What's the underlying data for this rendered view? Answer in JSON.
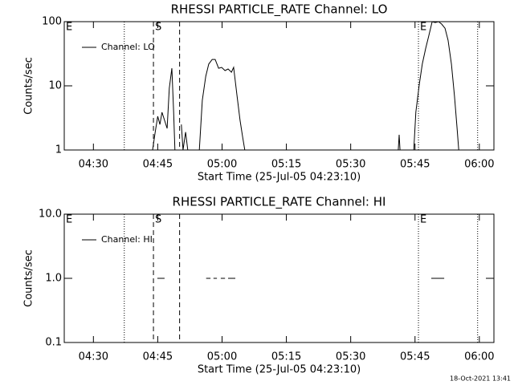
{
  "chart_data": [
    {
      "type": "line",
      "title": "RHESSI PARTICLE_RATE Channel: LO",
      "xlabel": "Start Time (25-Jul-05 04:23:10)",
      "ylabel": "Counts/sec",
      "log_y": true,
      "legend": "upper left",
      "xlim": [
        263.2,
        363.4
      ],
      "xticks": [
        {
          "value": 270,
          "label": "04:30"
        },
        {
          "value": 285,
          "label": "04:45"
        },
        {
          "value": 300,
          "label": "05:00"
        },
        {
          "value": 315,
          "label": "05:15"
        },
        {
          "value": 330,
          "label": "05:30"
        },
        {
          "value": 345,
          "label": "05:45"
        },
        {
          "value": 360,
          "label": "06:00"
        }
      ],
      "ylim": [
        1,
        100
      ],
      "yticks": [
        1,
        10,
        100
      ],
      "markers": [
        {
          "x": 263.2,
          "style": "dotted",
          "label": "E"
        },
        {
          "x": 277.2,
          "style": "dotted"
        },
        {
          "x": 284.0,
          "style": "dashed",
          "label": "S"
        },
        {
          "x": 290.1,
          "style": "dashed"
        },
        {
          "x": 345.8,
          "style": "dotted",
          "label": "E"
        },
        {
          "x": 359.6,
          "style": "dotted"
        }
      ],
      "x": [
        283.8,
        284.4,
        285.0,
        285.5,
        286.0,
        286.6,
        287.2,
        287.7,
        288.3,
        288.7,
        289.0,
        null,
        290.5,
        290.9,
        291.5,
        292.0,
        null,
        294.7,
        295.4,
        296.2,
        296.9,
        297.7,
        298.4,
        299.2,
        299.9,
        300.7,
        301.4,
        302.2,
        302.7,
        303.5,
        304.2,
        304.8,
        305.3,
        null,
        341.1,
        341.3,
        341.5,
        null,
        344.7,
        345.2,
        346.0,
        346.7,
        347.5,
        348.2,
        349.0,
        349.7,
        350.5,
        351.2,
        352.0,
        352.7,
        353.5,
        354.2,
        354.8,
        355.2
      ],
      "series": [
        {
          "name": "Channel: LO",
          "color": "#000000",
          "values": [
            1,
            1.88,
            3.35,
            2.5,
            3.87,
            2.9,
            2.17,
            9.2,
            18.8,
            3.9,
            1,
            null,
            2.5,
            1,
            1.9,
            1,
            null,
            1,
            5.96,
            14.1,
            21.8,
            25.8,
            25.8,
            18.8,
            19.4,
            17.3,
            18.3,
            16.3,
            19.4,
            6.9,
            2.9,
            1.6,
            1,
            null,
            1,
            1.73,
            1,
            null,
            1,
            3.9,
            10.6,
            21.8,
            38.7,
            59.6,
            100,
            97,
            100,
            91.6,
            79,
            51.5,
            21.8,
            6.9,
            2.2,
            1
          ]
        }
      ]
    },
    {
      "type": "line",
      "title": "RHESSI PARTICLE_RATE Channel: HI",
      "xlabel": "Start Time (25-Jul-05 04:23:10)",
      "ylabel": "Counts/sec",
      "log_y": true,
      "legend": "upper left",
      "xlim": [
        263.2,
        363.4
      ],
      "xticks": [
        {
          "value": 270,
          "label": "04:30"
        },
        {
          "value": 285,
          "label": "04:45"
        },
        {
          "value": 300,
          "label": "05:00"
        },
        {
          "value": 315,
          "label": "05:15"
        },
        {
          "value": 330,
          "label": "05:30"
        },
        {
          "value": 345,
          "label": "05:45"
        },
        {
          "value": 360,
          "label": "06:00"
        }
      ],
      "ylim": [
        0.1,
        10
      ],
      "yticks": [
        0.1,
        {
          "value": 1,
          "label": "1.0"
        },
        {
          "value": 10,
          "label": "10.0"
        }
      ],
      "markers": [
        {
          "x": 263.2,
          "style": "dotted",
          "label": "E"
        },
        {
          "x": 277.2,
          "style": "dotted"
        },
        {
          "x": 284.0,
          "style": "dashed",
          "label": "S"
        },
        {
          "x": 290.1,
          "style": "dashed"
        },
        {
          "x": 345.8,
          "style": "dotted",
          "label": "E"
        },
        {
          "x": 359.6,
          "style": "dotted"
        }
      ],
      "x": [
        284.9,
        286.6,
        null,
        296.3,
        297.3,
        null,
        298.0,
        298.8,
        null,
        299.7,
        300.7,
        null,
        301.4,
        303.1,
        null,
        348.8,
        351.8
      ],
      "series": [
        {
          "name": "Channel: HI",
          "color": "#000000",
          "values": [
            1,
            1,
            null,
            1,
            1,
            null,
            1,
            1,
            null,
            1,
            1,
            null,
            1,
            1,
            null,
            1,
            1
          ]
        }
      ]
    }
  ],
  "footer": "18-Oct-2021 13:41"
}
